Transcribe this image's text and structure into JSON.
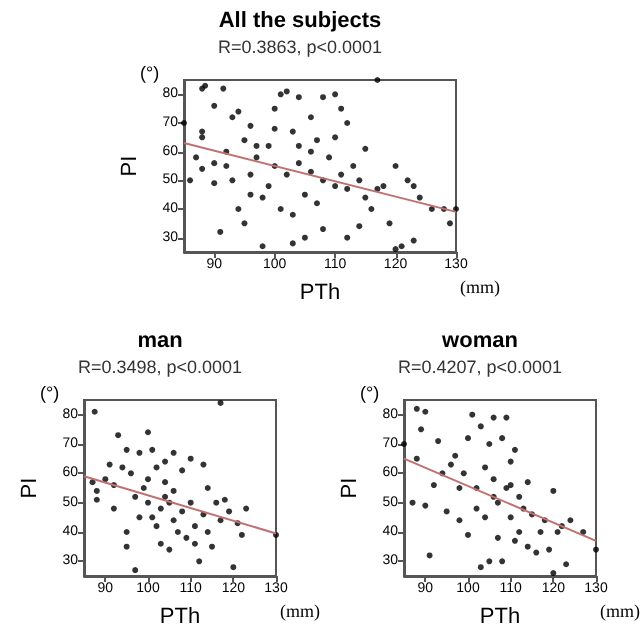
{
  "chart_data": [
    {
      "type": "scatter",
      "title": "All the subjects",
      "subtitle": "R=0.3863, p<0.0001",
      "xlabel": "PTh",
      "ylabel": "PI",
      "annotations": [
        "(°)",
        "(mm)"
      ],
      "xlim": [
        85,
        130
      ],
      "xticks": [
        90,
        100,
        110,
        120,
        130
      ],
      "ylim": [
        25,
        85
      ],
      "yticks": [
        30,
        40,
        50,
        60,
        70,
        80
      ],
      "grid": false,
      "series": [
        {
          "marker": "circle",
          "color": "#000000",
          "x": [
            88,
            88.5,
            91.5,
            85,
            90,
            88,
            88,
            86,
            88,
            87,
            91,
            93,
            94,
            92,
            95,
            96,
            97,
            98,
            100,
            101,
            102,
            100,
            104,
            106,
            108,
            110,
            111,
            110,
            112,
            117,
            115,
            118,
            120,
            122,
            124,
            123,
            126,
            128,
            129,
            130,
            121,
            120,
            123,
            119,
            116,
            114,
            112,
            108,
            105,
            103,
            100,
            102,
            104,
            106,
            108,
            110,
            112,
            105,
            107,
            103,
            101,
            99,
            97,
            96,
            95,
            94,
            93,
            92,
            90,
            90,
            98,
            106,
            109,
            111,
            113,
            115,
            117,
            114,
            107,
            104,
            103,
            99,
            96
          ],
          "values": [
            82,
            83,
            82,
            70,
            76,
            67,
            65,
            50,
            54,
            58,
            32,
            72,
            74,
            60,
            64,
            69,
            62,
            27,
            75,
            80,
            81,
            68,
            79,
            72,
            79,
            80,
            75,
            65,
            70,
            85,
            61,
            48,
            55,
            50,
            44,
            48,
            40,
            40,
            35,
            40,
            27,
            26,
            29,
            35,
            40,
            34,
            30,
            33,
            30,
            28,
            55,
            52,
            56,
            53,
            50,
            48,
            47,
            45,
            42,
            38,
            40,
            48,
            58,
            52,
            35,
            40,
            50,
            55,
            56,
            49,
            44,
            60,
            58,
            52,
            55,
            44,
            47,
            50,
            64,
            62,
            67,
            62,
            45
          ]
        },
        {
          "type": "line",
          "color": "#c07070",
          "x": [
            85,
            130
          ],
          "values": [
            63,
            39
          ]
        }
      ]
    },
    {
      "type": "scatter",
      "title": "man",
      "subtitle": "R=0.3498, p<0.0001",
      "xlabel": "PTh",
      "ylabel": "PI",
      "annotations": [
        "(°)",
        "(mm)"
      ],
      "xlim": [
        85,
        130
      ],
      "xticks": [
        90,
        100,
        110,
        120,
        130
      ],
      "ylim": [
        25,
        85
      ],
      "yticks": [
        30,
        40,
        50,
        60,
        70,
        80
      ],
      "grid": false,
      "series": [
        {
          "marker": "circle",
          "color": "#000000",
          "x": [
            87.5,
            87,
            88,
            88,
            90,
            91,
            92,
            93,
            94,
            95,
            95,
            95,
            96,
            97,
            97,
            98,
            99,
            100,
            100,
            101,
            101,
            102,
            102,
            103,
            103,
            104,
            104,
            104,
            105,
            105,
            106,
            106,
            106,
            107,
            108,
            108,
            109,
            110,
            110,
            111,
            111,
            112,
            113,
            113,
            114,
            114,
            115,
            116,
            117,
            117,
            118,
            119,
            120,
            121,
            122,
            123,
            130,
            98,
            92,
            100
          ],
          "values": [
            81,
            57,
            54,
            51,
            58,
            63,
            56,
            73,
            62,
            68,
            40,
            35,
            60,
            52,
            27,
            67,
            55,
            74,
            50,
            68,
            45,
            62,
            42,
            48,
            36,
            57,
            52,
            64,
            50,
            34,
            67,
            54,
            44,
            40,
            61,
            47,
            38,
            65,
            50,
            42,
            36,
            30,
            63,
            46,
            55,
            40,
            35,
            50,
            84,
            44,
            51,
            47,
            28,
            43,
            39,
            48,
            39,
            45,
            48,
            58
          ]
        },
        {
          "type": "line",
          "color": "#c07070",
          "x": [
            85,
            130
          ],
          "values": [
            59,
            39.5
          ]
        }
      ]
    },
    {
      "type": "scatter",
      "title": "woman",
      "subtitle": "R=0.4207, p<0.0001",
      "xlabel": "PTh",
      "ylabel": "PI",
      "annotations": [
        "(°)",
        "(mm)"
      ],
      "xlim": [
        85,
        130
      ],
      "xticks": [
        90,
        100,
        110,
        120,
        130
      ],
      "ylim": [
        25,
        85
      ],
      "yticks": [
        30,
        40,
        50,
        60,
        70,
        80
      ],
      "grid": false,
      "series": [
        {
          "marker": "circle",
          "color": "#000000",
          "x": [
            85,
            88,
            89,
            90,
            88,
            87,
            90,
            91,
            92,
            93,
            94,
            95,
            96,
            97,
            98,
            99,
            100,
            100,
            101,
            102,
            103,
            103,
            104,
            104,
            105,
            105,
            106,
            106,
            107,
            107,
            108,
            108,
            109,
            109,
            110,
            110,
            111,
            111,
            112,
            112,
            113,
            114,
            114,
            115,
            116,
            117,
            118,
            119,
            120,
            120,
            121,
            122,
            123,
            124,
            127,
            130,
            98,
            102,
            106,
            110
          ],
          "values": [
            70,
            82,
            75,
            81,
            65,
            50,
            49,
            32,
            56,
            71,
            60,
            47,
            63,
            66,
            55,
            60,
            39,
            72,
            80,
            55,
            76,
            28,
            62,
            45,
            70,
            30,
            79,
            58,
            50,
            38,
            72,
            30,
            79,
            55,
            64,
            45,
            68,
            37,
            52,
            40,
            48,
            57,
            35,
            46,
            33,
            40,
            44,
            34,
            26,
            54,
            40,
            42,
            29,
            44,
            40,
            34,
            44,
            48,
            52,
            56
          ]
        },
        {
          "type": "line",
          "color": "#c07070",
          "x": [
            85,
            130
          ],
          "values": [
            65,
            37
          ]
        }
      ]
    }
  ]
}
